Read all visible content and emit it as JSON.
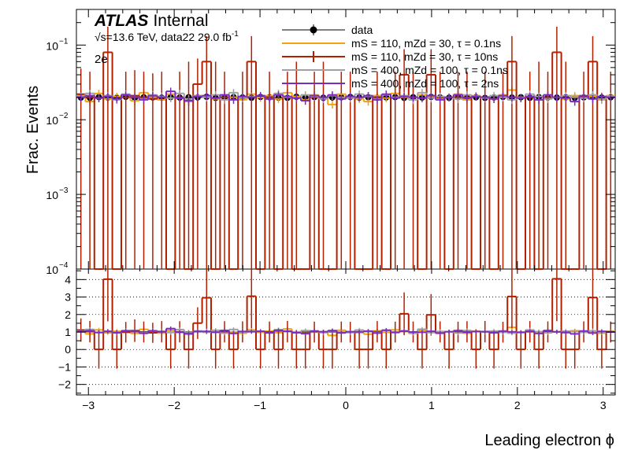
{
  "colors": {
    "data": "#000000",
    "s110_01": "#f0a30a",
    "s110_10": "#b22000",
    "s400_01": "#a0a0a0",
    "s400_2": "#7b2bbf"
  },
  "labels": {
    "atlas": "ATLAS",
    "internal": "Internal",
    "energy": "√s=13.6 TeV, data22 29.0 fb",
    "energy_sup": "-1",
    "channel": "2e",
    "ylabel": "Frac. Events",
    "xlabel": "Leading electron ϕ"
  },
  "legend": [
    {
      "key": "data",
      "text": "data"
    },
    {
      "key": "s110_01",
      "text": "mS = 110, mZd = 30, τ = 0.1ns"
    },
    {
      "key": "s110_10",
      "text": "mS = 110, mZd = 30, τ = 10ns"
    },
    {
      "key": "s400_01",
      "text": "mS = 400, mZd = 100, τ = 0.1ns"
    },
    {
      "key": "s400_2",
      "text": "mS = 400, mZd = 100, τ = 2ns"
    }
  ],
  "chart_data": {
    "type": "line",
    "xlabel": "Leading electron ϕ",
    "ylabel": "Frac. Events",
    "xlim": [
      -3.14,
      3.14
    ],
    "top_ylim": [
      0.0001,
      0.3
    ],
    "top_yscale": "log",
    "ratio_ylim": [
      -2.6,
      4.6
    ],
    "x_ticks": [
      "−3",
      "−2",
      "−1",
      "0",
      "1",
      "2",
      "3"
    ],
    "top_y_ticks": [
      "10",
      "10",
      "10",
      "10"
    ],
    "top_y_tick_exps": [
      "−1",
      "−2",
      "−3",
      "−4"
    ],
    "ratio_y_ticks": [
      "4",
      "3",
      "2",
      "1",
      "0",
      "−1",
      "−2"
    ],
    "grid": "ratio panel dotted horizontal",
    "nbins": 60,
    "series": [
      {
        "key": "data",
        "draw": "points",
        "values": [
          0.0198,
          0.0196,
          0.0201,
          0.0199,
          0.0197,
          0.0203,
          0.0195,
          0.02,
          0.0199,
          0.0197,
          0.0201,
          0.0198,
          0.02,
          0.0199,
          0.0203,
          0.0196,
          0.0198,
          0.0201,
          0.0199,
          0.0197,
          0.0202,
          0.02,
          0.0198,
          0.0196,
          0.0203,
          0.0199,
          0.0201,
          0.0197,
          0.0199,
          0.02,
          0.0202,
          0.0198,
          0.02,
          0.0197,
          0.0199,
          0.0201,
          0.0196,
          0.02,
          0.0198,
          0.0202,
          0.0199,
          0.0197,
          0.0201,
          0.0198,
          0.02,
          0.0196,
          0.0199,
          0.0202,
          0.0198,
          0.02,
          0.0197,
          0.0201,
          0.0199,
          0.0198,
          0.02,
          0.0196,
          0.0199,
          0.0202,
          0.0198,
          0.02
        ]
      },
      {
        "key": "s110_01",
        "draw": "step",
        "values": [
          0.021,
          0.0175,
          0.0225,
          0.019,
          0.0205,
          0.0215,
          0.018,
          0.023,
          0.02,
          0.0185,
          0.022,
          0.0195,
          0.0175,
          0.021,
          0.0205,
          0.019,
          0.0215,
          0.02,
          0.0185,
          0.022,
          0.0198,
          0.021,
          0.019,
          0.023,
          0.0205,
          0.0185,
          0.0215,
          0.02,
          0.016,
          0.022,
          0.0205,
          0.019,
          0.0175,
          0.021,
          0.0195,
          0.0225,
          0.02,
          0.0185,
          0.0215,
          0.0205,
          0.019,
          0.02,
          0.022,
          0.0185,
          0.021,
          0.02,
          0.019,
          0.0215,
          0.025,
          0.0195,
          0.0205,
          0.0185,
          0.0215,
          0.02,
          0.019,
          0.021,
          0.0195,
          0.0205,
          0.0185,
          0.021
        ]
      },
      {
        "key": "s110_10",
        "draw": "step",
        "values": [
          0.022,
          0.02,
          0.0001,
          0.08,
          0.0001,
          0.02,
          0.021,
          0.02,
          0.019,
          0.02,
          0.0001,
          0.02,
          0.0001,
          0.03,
          0.06,
          0.0001,
          0.02,
          0.0001,
          0.02,
          0.06,
          0.0001,
          0.02,
          0.0001,
          0.02,
          0.0001,
          0.0001,
          0.02,
          0.0001,
          0.0001,
          0.02,
          0.02,
          0.0001,
          0.0001,
          0.02,
          0.0001,
          0.02,
          0.04,
          0.02,
          0.0001,
          0.04,
          0.02,
          0.0001,
          0.02,
          0.02,
          0.0001,
          0.02,
          0.0001,
          0.02,
          0.06,
          0.0001,
          0.02,
          0.0001,
          0.02,
          0.08,
          0.0001,
          0.0001,
          0.02,
          0.06,
          0.0001,
          0.02
        ]
      },
      {
        "key": "s400_01",
        "draw": "step",
        "values": [
          0.0205,
          0.0225,
          0.0195,
          0.021,
          0.0185,
          0.022,
          0.02,
          0.019,
          0.0215,
          0.0205,
          0.0195,
          0.0225,
          0.019,
          0.021,
          0.02,
          0.0215,
          0.0185,
          0.023,
          0.0195,
          0.0205,
          0.021,
          0.019,
          0.0225,
          0.02,
          0.0195,
          0.0215,
          0.0205,
          0.019,
          0.021,
          0.02,
          0.0195,
          0.022,
          0.0205,
          0.019,
          0.0215,
          0.02,
          0.021,
          0.0185,
          0.023,
          0.0195,
          0.0205,
          0.02,
          0.019,
          0.0215,
          0.0205,
          0.0195,
          0.021,
          0.02,
          0.0185,
          0.02,
          0.022,
          0.0205,
          0.019,
          0.02,
          0.021,
          0.02,
          0.0195,
          0.0215,
          0.019,
          0.0205
        ]
      },
      {
        "key": "s400_2",
        "draw": "step",
        "values": [
          0.02,
          0.021,
          0.0195,
          0.0205,
          0.019,
          0.0215,
          0.02,
          0.0185,
          0.021,
          0.02,
          0.024,
          0.0195,
          0.018,
          0.0205,
          0.021,
          0.0195,
          0.0215,
          0.0185,
          0.0205,
          0.02,
          0.021,
          0.019,
          0.0215,
          0.0205,
          0.0195,
          0.018,
          0.021,
          0.02,
          0.0215,
          0.019,
          0.0205,
          0.02,
          0.021,
          0.0185,
          0.022,
          0.0195,
          0.0205,
          0.02,
          0.0195,
          0.021,
          0.0185,
          0.02,
          0.0215,
          0.0195,
          0.0205,
          0.02,
          0.019,
          0.021,
          0.02,
          0.0195,
          0.0205,
          0.0185,
          0.0215,
          0.02,
          0.0195,
          0.0175,
          0.021,
          0.019,
          0.0205,
          0.02
        ]
      }
    ]
  }
}
